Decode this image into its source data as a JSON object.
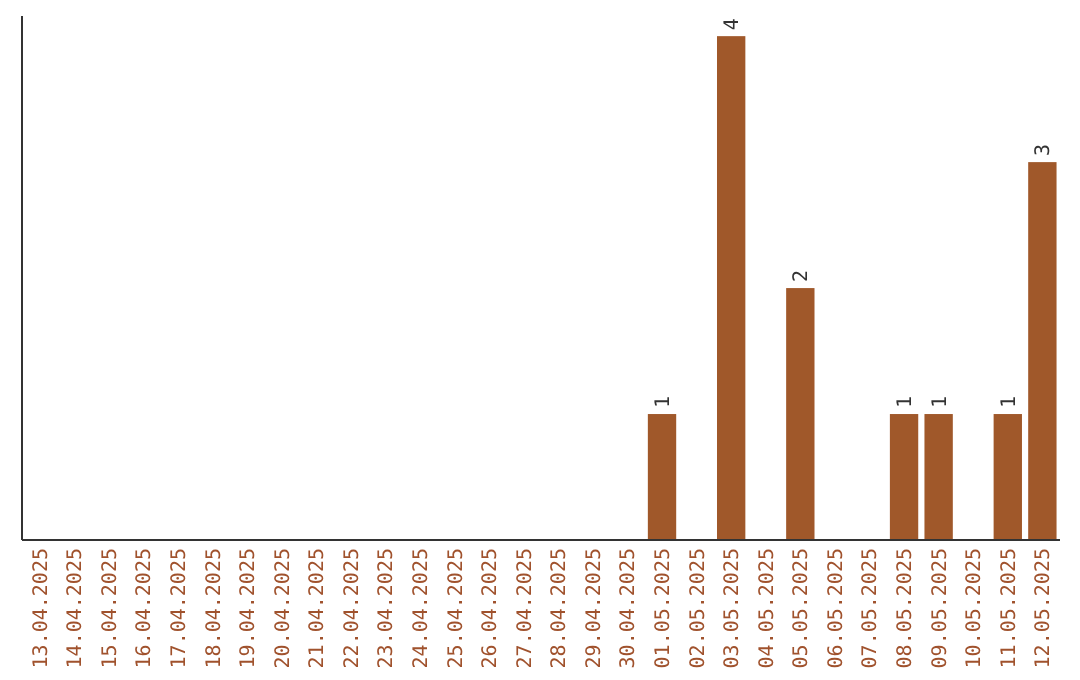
{
  "chart_data": {
    "type": "bar",
    "categories": [
      "13.04.2025",
      "14.04.2025",
      "15.04.2025",
      "16.04.2025",
      "17.04.2025",
      "18.04.2025",
      "19.04.2025",
      "20.04.2025",
      "21.04.2025",
      "22.04.2025",
      "23.04.2025",
      "24.04.2025",
      "25.04.2025",
      "26.04.2025",
      "27.04.2025",
      "28.04.2025",
      "29.04.2025",
      "30.04.2025",
      "01.05.2025",
      "02.05.2025",
      "03.05.2025",
      "04.05.2025",
      "05.05.2025",
      "06.05.2025",
      "07.05.2025",
      "08.05.2025",
      "09.05.2025",
      "10.05.2025",
      "11.05.2025",
      "12.05.2025"
    ],
    "values": [
      null,
      null,
      null,
      null,
      null,
      null,
      null,
      null,
      null,
      null,
      null,
      null,
      null,
      null,
      null,
      null,
      null,
      null,
      1,
      null,
      4,
      null,
      2,
      null,
      null,
      1,
      1,
      null,
      1,
      3
    ],
    "data_labels": true,
    "color": "#a0582a",
    "grid": false,
    "tick_labels": "x"
  }
}
